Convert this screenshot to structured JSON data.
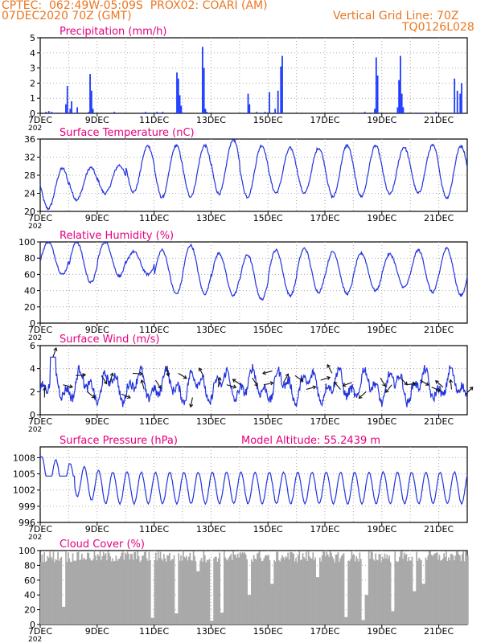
{
  "header": {
    "line1": "CPTEC:  062:49W-05:09S  PROX02: COARI (AM)",
    "line2": "07DEC2020 70Z (GMT)",
    "grid_note": "Vertical Grid Line: 70Z",
    "code": "TQ0126L028"
  },
  "x_axis": {
    "start_day": 7,
    "end_day": 22,
    "tick_labels": [
      "7DEC",
      "9DEC",
      "11DEC",
      "13DEC",
      "15DEC",
      "17DEC",
      "19DEC",
      "21DEC"
    ],
    "tick_days": [
      7,
      9,
      11,
      13,
      15,
      17,
      19,
      21
    ],
    "under_label": "202"
  },
  "colors": {
    "title": "#e6007e",
    "line": "#2233dd",
    "bar": "#1f3bff",
    "cloud": "#a9a9a9",
    "arrow": "#111111"
  },
  "chart_data": [
    {
      "type": "bar",
      "title": "Precipitation (mm/h)",
      "ylim": [
        0,
        5
      ],
      "yticks": [
        0,
        1,
        2,
        3,
        4,
        5
      ],
      "x": [
        7.2,
        7.3,
        7.4,
        7.6,
        7.9,
        7.95,
        8.05,
        8.1,
        8.3,
        8.7,
        8.75,
        8.8,
        8.85,
        9.6,
        10.6,
        10.7,
        10.8,
        11.1,
        11.2,
        11.3,
        11.75,
        11.8,
        11.85,
        11.9,
        11.95,
        12.7,
        12.75,
        12.8,
        12.85,
        14.3,
        14.35,
        14.6,
        14.9,
        15.05,
        15.25,
        15.35,
        15.45,
        15.5,
        17.6,
        18.3,
        18.4,
        18.6,
        18.75,
        18.8,
        18.85,
        19.55,
        19.6,
        19.65,
        19.7,
        19.75,
        20.2,
        20.4,
        20.9,
        21.55,
        21.65,
        21.75,
        21.8
      ],
      "values": [
        0.1,
        0.15,
        0.1,
        0.05,
        0.6,
        1.8,
        0.3,
        0.8,
        0.4,
        0.1,
        2.6,
        1.5,
        0.3,
        0.1,
        0.05,
        0.1,
        0.05,
        0.1,
        0.05,
        0.1,
        0.05,
        2.7,
        2.3,
        1.2,
        0.5,
        4.4,
        3.0,
        0.3,
        0.1,
        1.3,
        0.6,
        0.1,
        0.1,
        1.4,
        0.3,
        1.5,
        3.1,
        3.8,
        0.05,
        0.05,
        0.1,
        0.05,
        0.3,
        3.7,
        2.5,
        0.4,
        2.2,
        3.8,
        1.3,
        0.4,
        0.05,
        0.05,
        0.1,
        2.3,
        1.5,
        1.3,
        2.0
      ]
    },
    {
      "type": "line",
      "title": "Surface Temperature (nC)",
      "ylim": [
        20,
        36
      ],
      "yticks": [
        20,
        24,
        28,
        32,
        36
      ],
      "mean": 27.5,
      "amplitude": 4.8,
      "phase_day": 0.08,
      "day_max": [
        29.5,
        29.7,
        30.2,
        34.5,
        34.6,
        34.6,
        35.9,
        34.6,
        34.0,
        34.0,
        34.6,
        34.5,
        34.2,
        34.6,
        34.5
      ],
      "day_min": [
        20.6,
        22.6,
        24.0,
        24.3,
        23.1,
        23.3,
        23.9,
        23.2,
        24.1,
        24.0,
        23.2,
        23.3,
        23.8,
        24.0,
        23.0
      ]
    },
    {
      "type": "line",
      "title": "Relative Humidity (%)",
      "ylim": [
        0,
        100
      ],
      "yticks": [
        0,
        20,
        40,
        60,
        80,
        100
      ],
      "day_max": [
        100,
        100,
        100,
        88,
        90,
        96,
        86,
        84,
        90,
        92,
        88,
        86,
        85,
        90,
        92
      ],
      "day_min": [
        60,
        50,
        58,
        60,
        36,
        36,
        34,
        29,
        34,
        38,
        36,
        40,
        44,
        38,
        34
      ]
    },
    {
      "type": "line",
      "title": "Surface Wind (m/s)",
      "ylim": [
        0,
        6
      ],
      "yticks": [
        0,
        2,
        4,
        6
      ],
      "arrows_day": [
        7.15,
        7.45,
        7.8,
        8.25,
        8.65,
        9.15,
        9.45,
        9.85,
        10.25,
        10.65,
        11.05,
        11.45,
        11.85,
        12.35,
        12.75,
        13.25,
        13.55,
        14.05,
        14.45,
        14.85,
        15.15,
        15.55,
        15.95,
        16.35,
        16.85,
        17.25,
        17.55,
        17.95,
        18.45,
        18.95,
        19.35,
        19.65,
        19.85,
        20.35,
        20.75,
        21.15,
        21.45,
        21.95
      ],
      "arrows_speed": [
        1.5,
        5.0,
        2.6,
        3.4,
        2.0,
        3.4,
        2.8,
        1.8,
        3.6,
        2.2,
        3.0,
        4.2,
        3.6,
        1.5,
        3.3,
        2.4,
        2.6,
        2.6,
        3.2,
        2.6,
        3.8,
        2.8,
        3.4,
        2.2,
        3.0,
        3.6,
        2.2,
        2.8,
        2.0,
        3.2,
        2.6,
        3.2,
        2.6,
        3.0,
        2.4,
        2.4,
        2.2,
        1.8
      ]
    },
    {
      "type": "line",
      "title": "Surface Pressure (hPa)",
      "annotation": "Model Altitude: 55.2439 m",
      "ylim": [
        996,
        1010
      ],
      "yticks": [
        996,
        999,
        1002,
        1005,
        1008
      ],
      "mean": 1002.4,
      "amplitude": 2.9
    },
    {
      "type": "area",
      "title": "Cloud Cover (%)",
      "ylim": [
        0,
        100
      ],
      "yticks": [
        0,
        20,
        40,
        60,
        80,
        100
      ],
      "mean_level": 92,
      "dips_day": [
        7.8,
        10.9,
        11.75,
        12.5,
        13.0,
        13.35,
        14.3,
        15.1,
        16.7,
        17.7,
        18.3,
        18.45,
        19.35,
        20.1,
        20.45
      ],
      "dips_value": [
        24,
        9,
        15,
        72,
        5,
        16,
        40,
        55,
        64,
        10,
        6,
        40,
        18,
        45,
        55
      ]
    }
  ]
}
